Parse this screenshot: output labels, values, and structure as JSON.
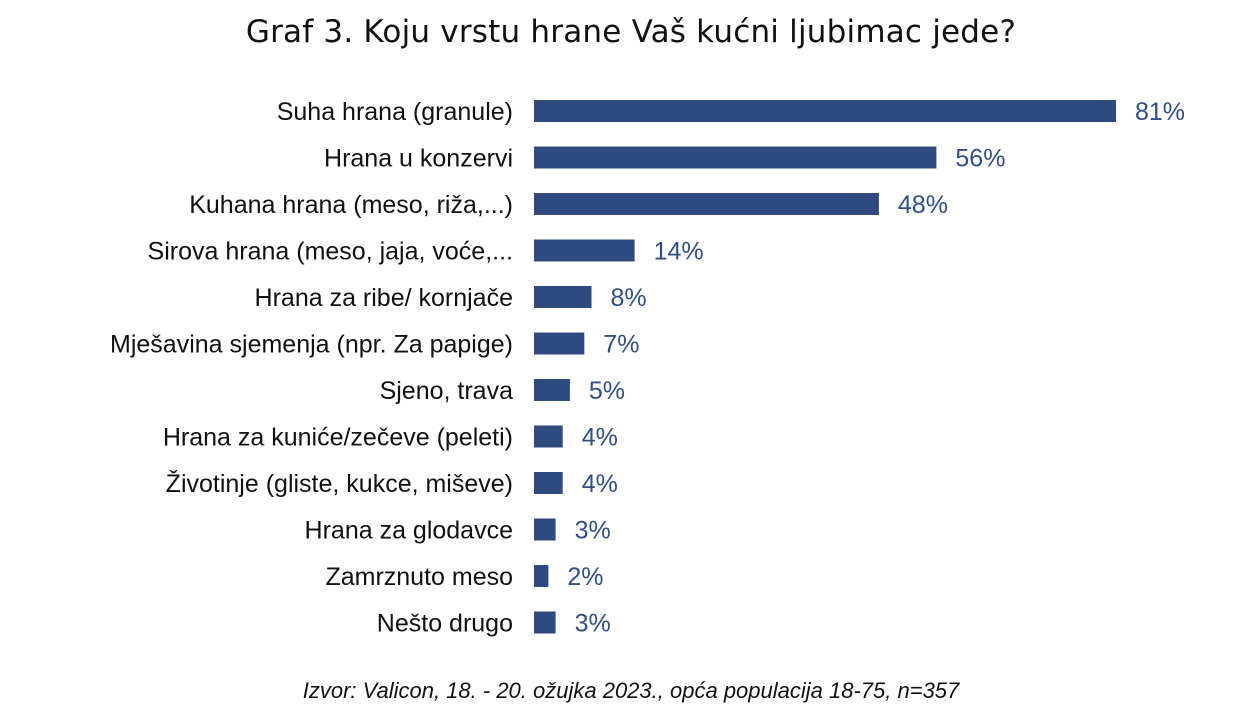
{
  "chart_data": {
    "type": "bar",
    "orientation": "horizontal",
    "title": "Graf 3. Koju vrstu hrane Vaš kućni ljubimac jede?",
    "categories": [
      "Suha hrana (granule)",
      "Hrana u konzervi",
      "Kuhana hrana (meso, riža,...)",
      "Sirova hrana (meso, jaja, voće,...",
      "Hrana za ribe/ kornjače",
      "Mješavina sjemenja (npr. Za papige)",
      "Sjeno, trava",
      "Hrana za kuniće/zečeve (peleti)",
      "Životinje (gliste, kukce, miševe)",
      "Hrana za glodavce",
      "Zamrznuto meso",
      "Nešto drugo"
    ],
    "values": [
      81,
      56,
      48,
      14,
      8,
      7,
      5,
      4,
      4,
      3,
      2,
      3
    ],
    "value_labels": [
      "81%",
      "56%",
      "48%",
      "14%",
      "8%",
      "7%",
      "5%",
      "4%",
      "4%",
      "3%",
      "2%",
      "3%"
    ],
    "unit": "%",
    "xlim": [
      0,
      81
    ],
    "grid": false,
    "legend": false,
    "bar_color": "#2e4a7e",
    "label_color": "#2f4f86",
    "source": "Izvor: Valicon, 18. - 20. ožujka 2023., opća populacija 18-75, n=357"
  }
}
